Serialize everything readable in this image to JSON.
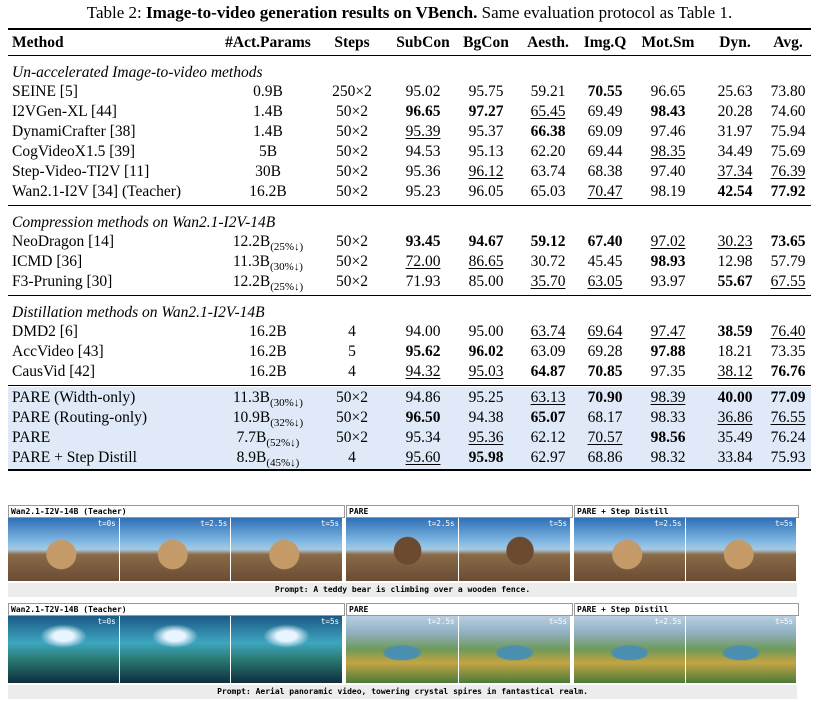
{
  "caption": {
    "label": "Table 2:",
    "bold": "Image-to-video generation results on VBench.",
    "rest": "Same evaluation protocol as Table 1."
  },
  "table": {
    "header": [
      "Method",
      "#Act.Params",
      "Steps",
      "SubCon",
      "BgCon",
      "Aesth.",
      "Img.Q",
      "Mot.Sm",
      "Dyn.",
      "Avg."
    ],
    "groups": [
      {
        "title": "Un-accelerated Image-to-video methods",
        "rows": [
          {
            "method": "SEINE [5]",
            "params": "0.9B",
            "steps": "250×2",
            "scores": [
              "95.02",
              "95.75",
              "59.21",
              "70.55",
              "96.65",
              "25.63",
              "73.80"
            ],
            "bold": [
              3
            ],
            "underline": []
          },
          {
            "method": "I2VGen-XL [44]",
            "params": "1.4B",
            "steps": "50×2",
            "scores": [
              "96.65",
              "97.27",
              "65.45",
              "69.49",
              "98.43",
              "20.28",
              "74.60"
            ],
            "bold": [
              0,
              1,
              4
            ],
            "underline": [
              2
            ]
          },
          {
            "method": "DynamiCrafter [38]",
            "params": "1.4B",
            "steps": "50×2",
            "scores": [
              "95.39",
              "95.37",
              "66.38",
              "69.09",
              "97.46",
              "31.97",
              "75.94"
            ],
            "bold": [
              2
            ],
            "underline": [
              0
            ]
          },
          {
            "method": "CogVideoX1.5 [39]",
            "params": "5B",
            "steps": "50×2",
            "scores": [
              "94.53",
              "95.13",
              "62.20",
              "69.44",
              "98.35",
              "34.49",
              "75.69"
            ],
            "bold": [],
            "underline": [
              4
            ]
          },
          {
            "method": "Step-Video-TI2V [11]",
            "params": "30B",
            "steps": "50×2",
            "scores": [
              "95.36",
              "96.12",
              "63.74",
              "68.38",
              "97.40",
              "37.34",
              "76.39"
            ],
            "bold": [],
            "underline": [
              1,
              5,
              6
            ]
          },
          {
            "method": "Wan2.1-I2V [34] (Teacher)",
            "params": "16.2B",
            "steps": "50×2",
            "scores": [
              "95.23",
              "96.05",
              "65.03",
              "70.47",
              "98.19",
              "42.54",
              "77.92"
            ],
            "bold": [
              5,
              6
            ],
            "underline": [
              3
            ]
          }
        ]
      },
      {
        "title": "Compression methods on Wan2.1-I2V-14B",
        "rows": [
          {
            "method": "NeoDragon [14]",
            "params": "12.2B",
            "params_sub": "(25%↓)",
            "steps": "50×2",
            "scores": [
              "93.45",
              "94.67",
              "59.12",
              "67.40",
              "97.02",
              "30.23",
              "73.65"
            ],
            "bold": [
              0,
              1,
              2,
              3,
              6
            ],
            "underline": [
              4,
              5
            ]
          },
          {
            "method": "ICMD [36]",
            "params": "11.3B",
            "params_sub": "(30%↓)",
            "steps": "50×2",
            "scores": [
              "72.00",
              "86.65",
              "30.72",
              "45.45",
              "98.93",
              "12.98",
              "57.79"
            ],
            "bold": [
              4
            ],
            "underline": [
              0,
              1
            ]
          },
          {
            "method": "F3-Pruning [30]",
            "params": "12.2B",
            "params_sub": "(25%↓)",
            "steps": "50×2",
            "scores": [
              "71.93",
              "85.00",
              "35.70",
              "63.05",
              "93.97",
              "55.67",
              "67.55"
            ],
            "bold": [
              5
            ],
            "underline": [
              2,
              3,
              6
            ]
          }
        ]
      },
      {
        "title": "Distillation methods on Wan2.1-I2V-14B",
        "rows": [
          {
            "method": "DMD2 [6]",
            "params": "16.2B",
            "steps": "4",
            "scores": [
              "94.00",
              "95.00",
              "63.74",
              "69.64",
              "97.47",
              "38.59",
              "76.40"
            ],
            "bold": [
              5
            ],
            "underline": [
              2,
              3,
              4,
              6
            ]
          },
          {
            "method": "AccVideo [43]",
            "params": "16.2B",
            "steps": "5",
            "scores": [
              "95.62",
              "96.02",
              "63.09",
              "69.28",
              "97.88",
              "18.21",
              "73.35"
            ],
            "bold": [
              0,
              1,
              4
            ],
            "underline": []
          },
          {
            "method": "CausVid [42]",
            "params": "16.2B",
            "steps": "4",
            "scores": [
              "94.32",
              "95.03",
              "64.87",
              "70.85",
              "97.35",
              "38.12",
              "76.76"
            ],
            "bold": [
              2,
              3,
              6
            ],
            "underline": [
              0,
              1,
              5
            ]
          }
        ]
      },
      {
        "shaded": true,
        "rows": [
          {
            "method": "PARE (Width-only)",
            "params": "11.3B",
            "params_sub": "(30%↓)",
            "steps": "50×2",
            "scores": [
              "94.86",
              "95.25",
              "63.13",
              "70.90",
              "98.39",
              "40.00",
              "77.09"
            ],
            "bold": [
              3,
              5,
              6
            ],
            "underline": [
              2,
              4
            ]
          },
          {
            "method": "PARE (Routing-only)",
            "params": "10.9B",
            "params_sub": "(32%↓)",
            "steps": "50×2",
            "scores": [
              "96.50",
              "94.38",
              "65.07",
              "68.17",
              "98.33",
              "36.86",
              "76.55"
            ],
            "bold": [
              0,
              2
            ],
            "underline": [
              5,
              6
            ]
          },
          {
            "method": "PARE",
            "params": "7.7B",
            "params_sub": "(52%↓)",
            "steps": "50×2",
            "scores": [
              "95.34",
              "95.36",
              "62.12",
              "70.57",
              "98.56",
              "35.49",
              "76.24"
            ],
            "bold": [
              4
            ],
            "underline": [
              1,
              3
            ]
          },
          {
            "method": "PARE + Step Distill",
            "params": "8.9B",
            "params_sub": "(45%↓)",
            "steps": "4",
            "scores": [
              "95.60",
              "95.98",
              "62.97",
              "68.86",
              "98.32",
              "33.84",
              "75.93"
            ],
            "bold": [
              1
            ],
            "underline": [
              0
            ]
          }
        ]
      }
    ]
  },
  "figure": {
    "rows": [
      {
        "panels": [
          {
            "title": "Wan2.1-I2V-14B (Teacher)",
            "times": [
              "t=0s",
              "t=2.5s",
              "t=5s"
            ]
          },
          {
            "title": "PARE",
            "times": [
              "t=2.5s",
              "t=5s"
            ]
          },
          {
            "title": "PARE + Step Distill",
            "times": [
              "t=2.5s",
              "t=5s"
            ]
          }
        ],
        "prompt": "Prompt: A teddy bear is climbing over a wooden fence."
      },
      {
        "panels": [
          {
            "title": "Wan2.1-T2V-14B (Teacher)",
            "times": [
              "t=0s",
              null,
              "t=5s"
            ]
          },
          {
            "title": "PARE",
            "times": [
              "t=2.5s",
              "t=5s"
            ]
          },
          {
            "title": "PARE + Step Distill",
            "times": [
              "t=2.5s",
              "t=5s"
            ]
          }
        ],
        "prompt": "Prompt: Aerial panoramic video, towering crystal spires in fantastical realm."
      }
    ]
  }
}
